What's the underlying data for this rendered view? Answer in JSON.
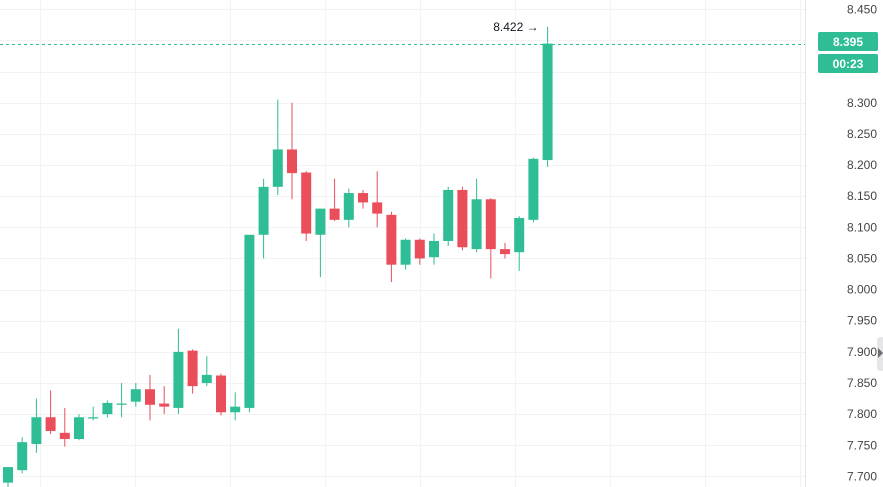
{
  "colors": {
    "up": "#2ebd95",
    "down": "#ea4e5b",
    "grid": "#f3f3f5",
    "axis_text": "#444444",
    "badge_text": "#ffffff"
  },
  "badges": {
    "last_price": "8.395",
    "countdown": "00:23",
    "high_marker": "8.422 →"
  },
  "chart_data": {
    "type": "candlestick",
    "title": "",
    "xlabel": "",
    "ylabel": "",
    "ylim": [
      7.683,
      8.465
    ],
    "y_ticks": [
      "8.450",
      "8.300",
      "8.250",
      "8.200",
      "8.150",
      "8.100",
      "8.050",
      "8.000",
      "7.950",
      "7.900",
      "7.850",
      "7.800",
      "7.750",
      "7.700"
    ],
    "grid": true,
    "last_price": 8.395,
    "high_marker_price": 8.422,
    "candles": [
      {
        "o": 7.69,
        "h": 7.713,
        "l": 7.678,
        "c": 7.715
      },
      {
        "o": 7.71,
        "h": 7.763,
        "l": 7.705,
        "c": 7.755
      },
      {
        "o": 7.752,
        "h": 7.825,
        "l": 7.738,
        "c": 7.795
      },
      {
        "o": 7.795,
        "h": 7.838,
        "l": 7.768,
        "c": 7.773
      },
      {
        "o": 7.77,
        "h": 7.81,
        "l": 7.748,
        "c": 7.76
      },
      {
        "o": 7.76,
        "h": 7.8,
        "l": 7.758,
        "c": 7.795
      },
      {
        "o": 7.793,
        "h": 7.812,
        "l": 7.79,
        "c": 7.795
      },
      {
        "o": 7.8,
        "h": 7.822,
        "l": 7.795,
        "c": 7.818
      },
      {
        "o": 7.815,
        "h": 7.85,
        "l": 7.795,
        "c": 7.817
      },
      {
        "o": 7.82,
        "h": 7.85,
        "l": 7.812,
        "c": 7.84
      },
      {
        "o": 7.84,
        "h": 7.863,
        "l": 7.79,
        "c": 7.815
      },
      {
        "o": 7.817,
        "h": 7.845,
        "l": 7.8,
        "c": 7.812
      },
      {
        "o": 7.81,
        "h": 7.937,
        "l": 7.8,
        "c": 7.9
      },
      {
        "o": 7.902,
        "h": 7.904,
        "l": 7.833,
        "c": 7.845
      },
      {
        "o": 7.85,
        "h": 7.893,
        "l": 7.845,
        "c": 7.863
      },
      {
        "o": 7.862,
        "h": 7.865,
        "l": 7.798,
        "c": 7.803
      },
      {
        "o": 7.803,
        "h": 7.835,
        "l": 7.79,
        "c": 7.812
      },
      {
        "o": 7.81,
        "h": 8.085,
        "l": 7.803,
        "c": 8.088
      },
      {
        "o": 8.088,
        "h": 8.178,
        "l": 8.05,
        "c": 8.165
      },
      {
        "o": 8.165,
        "h": 8.305,
        "l": 8.152,
        "c": 8.225
      },
      {
        "o": 8.225,
        "h": 8.3,
        "l": 8.145,
        "c": 8.187
      },
      {
        "o": 8.188,
        "h": 8.19,
        "l": 8.078,
        "c": 8.09
      },
      {
        "o": 8.088,
        "h": 8.128,
        "l": 8.02,
        "c": 8.13
      },
      {
        "o": 8.13,
        "h": 8.178,
        "l": 8.11,
        "c": 8.112
      },
      {
        "o": 8.112,
        "h": 8.162,
        "l": 8.1,
        "c": 8.155
      },
      {
        "o": 8.155,
        "h": 8.16,
        "l": 8.13,
        "c": 8.14
      },
      {
        "o": 8.14,
        "h": 8.19,
        "l": 8.1,
        "c": 8.122
      },
      {
        "o": 8.12,
        "h": 8.125,
        "l": 8.012,
        "c": 8.04
      },
      {
        "o": 8.04,
        "h": 8.082,
        "l": 8.032,
        "c": 8.08
      },
      {
        "o": 8.08,
        "h": 8.082,
        "l": 8.04,
        "c": 8.05
      },
      {
        "o": 8.052,
        "h": 8.09,
        "l": 8.04,
        "c": 8.078
      },
      {
        "o": 8.078,
        "h": 8.165,
        "l": 8.07,
        "c": 8.16
      },
      {
        "o": 8.16,
        "h": 8.165,
        "l": 8.063,
        "c": 8.068
      },
      {
        "o": 8.065,
        "h": 8.178,
        "l": 8.06,
        "c": 8.145
      },
      {
        "o": 8.145,
        "h": 8.147,
        "l": 8.018,
        "c": 8.065
      },
      {
        "o": 8.065,
        "h": 8.075,
        "l": 8.05,
        "c": 8.057
      },
      {
        "o": 8.06,
        "h": 8.118,
        "l": 8.03,
        "c": 8.115
      },
      {
        "o": 8.112,
        "h": 8.212,
        "l": 8.108,
        "c": 8.21
      },
      {
        "o": 8.208,
        "h": 8.422,
        "l": 8.197,
        "c": 8.395
      }
    ]
  }
}
